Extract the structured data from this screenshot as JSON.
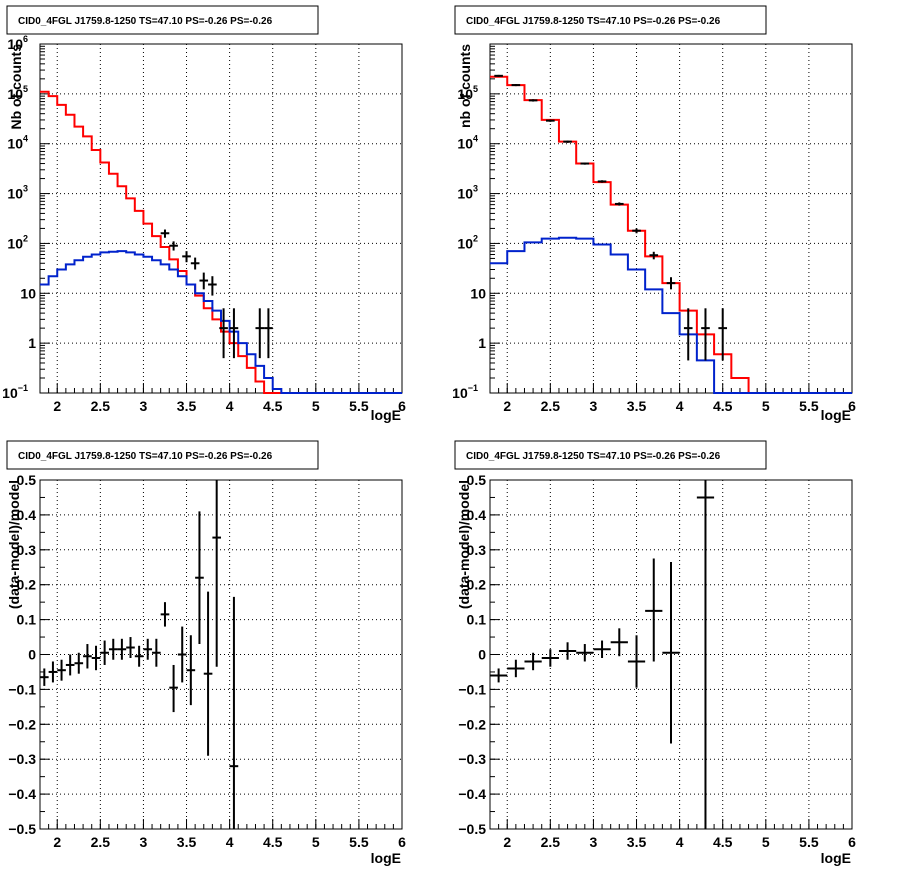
{
  "colors": {
    "data": "#000000",
    "total_model": "#ff0000",
    "source_model": "#0022cc",
    "grid": "#000000"
  },
  "chart_data": [
    {
      "id": "counts-left",
      "type": "line",
      "title": "CID0_4FGL J1759.8-1250 TS=47.10 PS=-0.26 PS=-0.26",
      "xlabel": "logE",
      "ylabel": "Nb of counts",
      "xlim": [
        1.8,
        6.0
      ],
      "ylim": [
        0.1,
        1000000
      ],
      "yscale": "log",
      "grid": true,
      "x_ticks": [
        2,
        2.5,
        3,
        3.5,
        4,
        4.5,
        5,
        5.5,
        6
      ],
      "y_ticks": [
        0.1,
        1,
        10,
        100,
        1000,
        10000,
        100000,
        1000000
      ],
      "y_tick_labels": [
        [
          "10",
          "−1"
        ],
        [
          "1",
          ""
        ],
        [
          "10",
          ""
        ],
        [
          "10",
          "2"
        ],
        [
          "10",
          "3"
        ],
        [
          "10",
          "4"
        ],
        [
          "10",
          "5"
        ],
        [
          "10",
          "6"
        ]
      ],
      "bin_edges": [
        1.8,
        1.9,
        2.0,
        2.1,
        2.2,
        2.3,
        2.4,
        2.5,
        2.6,
        2.7,
        2.8,
        2.9,
        3.0,
        3.1,
        3.2,
        3.3,
        3.4,
        3.5,
        3.6,
        3.7,
        3.8,
        3.9,
        4.0,
        4.1,
        4.2,
        4.3,
        4.4,
        4.5,
        4.6,
        4.7,
        4.8,
        4.9,
        5.0,
        5.1,
        5.2,
        5.3,
        5.4,
        5.5,
        5.6,
        5.7,
        5.8,
        5.9,
        6.0
      ],
      "series": [
        {
          "name": "",
          "role": "total_model",
          "style": "step",
          "values": [
            110000,
            90000,
            60000,
            38000,
            22000,
            14000,
            7500,
            4200,
            2500,
            1400,
            800,
            450,
            250,
            140,
            85,
            48,
            28,
            15,
            9,
            5,
            3,
            1.7,
            1.0,
            0.55,
            0.32,
            0.17,
            0.1,
            0.1,
            0.1,
            0.1,
            0.1,
            0.1,
            0.1,
            0.1,
            0.1,
            0.1,
            0.1,
            0.1,
            0.1,
            0.1,
            0.1,
            0.1
          ]
        },
        {
          "name": "",
          "role": "source_model",
          "style": "step",
          "values": [
            15,
            22,
            30,
            38,
            46,
            54,
            60,
            66,
            68,
            70,
            66,
            60,
            54,
            46,
            38,
            30,
            22,
            15,
            10,
            7,
            4.5,
            2.8,
            1.7,
            1.0,
            0.6,
            0.35,
            0.2,
            0.12,
            0.1,
            0.1,
            0.1,
            0.1,
            0.1,
            0.1,
            0.1,
            0.1,
            0.1,
            0.1,
            0.1,
            0.1,
            0.1,
            0.1
          ]
        },
        {
          "name": "",
          "role": "data",
          "style": "errorbar",
          "points": [
            [
              3.25,
              160,
              130,
              190
            ],
            [
              3.35,
              90,
              72,
              110
            ],
            [
              3.5,
              55,
              42,
              70
            ],
            [
              3.6,
              40,
              30,
              52
            ],
            [
              3.7,
              18,
              12,
              26
            ],
            [
              3.8,
              15,
              9,
              22
            ],
            [
              3.93,
              2,
              0.5,
              5
            ],
            [
              4.05,
              2,
              0.5,
              5
            ],
            [
              4.35,
              2,
              0.5,
              5
            ],
            [
              4.45,
              2,
              0.5,
              5
            ]
          ]
        }
      ]
    },
    {
      "id": "counts-right",
      "type": "line",
      "title": "CID0_4FGL J1759.8-1250 TS=47.10 PS=-0.26 PS=-0.26",
      "xlabel": "logE",
      "ylabel": "nb of counts",
      "xlim": [
        1.8,
        6.0
      ],
      "ylim": [
        0.1,
        1000000
      ],
      "yscale": "log",
      "grid": true,
      "x_ticks": [
        2,
        2.5,
        3,
        3.5,
        4,
        4.5,
        5,
        5.5,
        6
      ],
      "y_ticks": [
        0.1,
        1,
        10,
        100,
        1000,
        10000,
        100000
      ],
      "y_tick_labels": [
        [
          "10",
          "−1"
        ],
        [
          "1",
          ""
        ],
        [
          "10",
          ""
        ],
        [
          "10",
          "2"
        ],
        [
          "10",
          "3"
        ],
        [
          "10",
          "4"
        ],
        [
          "10",
          "5"
        ]
      ],
      "bin_edges": [
        1.8,
        2.0,
        2.2,
        2.4,
        2.6,
        2.8,
        3.0,
        3.2,
        3.4,
        3.6,
        3.8,
        4.0,
        4.2,
        4.4,
        4.6,
        4.8,
        5.0,
        5.2,
        5.4,
        5.6,
        5.8,
        6.0
      ],
      "series": [
        {
          "name": "",
          "role": "total_model",
          "style": "step",
          "values": [
            220000,
            150000,
            75000,
            30000,
            11000,
            4000,
            1700,
            600,
            180,
            55,
            16,
            4.5,
            1.5,
            0.6,
            0.2,
            0.1,
            0.1,
            0.1,
            0.1,
            0.1,
            0.1
          ]
        },
        {
          "name": "",
          "role": "source_model",
          "style": "step",
          "values": [
            40,
            70,
            105,
            125,
            130,
            125,
            95,
            60,
            30,
            12,
            4,
            1.5,
            0.45,
            0.1,
            0.1,
            0.1,
            0.1,
            0.1,
            0.1,
            0.1,
            0.1
          ]
        },
        {
          "name": "",
          "role": "data",
          "style": "errorbar",
          "points": [
            [
              1.9,
              230000,
              220000,
              240000
            ],
            [
              2.1,
              150000,
              143000,
              157000
            ],
            [
              2.3,
              74000,
              70000,
              78000
            ],
            [
              2.5,
              29000,
              27500,
              30500
            ],
            [
              2.7,
              11000,
              10400,
              11600
            ],
            [
              2.9,
              4000,
              3800,
              4200
            ],
            [
              3.1,
              1750,
              1650,
              1850
            ],
            [
              3.3,
              620,
              575,
              665
            ],
            [
              3.5,
              180,
              160,
              200
            ],
            [
              3.7,
              58,
              48,
              68
            ],
            [
              3.9,
              16,
              12,
              21
            ],
            [
              4.1,
              2,
              0.45,
              5
            ],
            [
              4.3,
              2,
              0.45,
              5
            ],
            [
              4.5,
              2,
              0.45,
              5
            ]
          ]
        }
      ]
    },
    {
      "id": "residual-left",
      "type": "scatter",
      "title": "CID0_4FGL J1759.8-1250 TS=47.10 PS=-0.26 PS=-0.26",
      "xlabel": "logE",
      "ylabel": "(data-model)/model",
      "xlim": [
        1.8,
        6.0
      ],
      "ylim": [
        -0.5,
        0.5
      ],
      "yscale": "linear",
      "grid": true,
      "x_ticks": [
        2,
        2.5,
        3,
        3.5,
        4,
        4.5,
        5,
        5.5,
        6
      ],
      "y_ticks": [
        -0.5,
        -0.4,
        -0.3,
        -0.2,
        -0.1,
        0,
        0.1,
        0.2,
        0.3,
        0.4,
        0.5
      ],
      "y_tick_labels": [
        "−0.5",
        "−0.4",
        "−0.3",
        "−0.2",
        "−0.1",
        "0",
        "0.1",
        "0.2",
        "0.3",
        "0.4",
        "0.5"
      ],
      "xerr": 0.05,
      "series": [
        {
          "name": "",
          "role": "data",
          "style": "errorbar",
          "points": [
            [
              1.85,
              -0.065,
              -0.09,
              -0.04
            ],
            [
              1.95,
              -0.05,
              -0.08,
              -0.02
            ],
            [
              2.05,
              -0.045,
              -0.075,
              -0.015
            ],
            [
              2.15,
              -0.03,
              -0.06,
              0.0
            ],
            [
              2.25,
              -0.025,
              -0.055,
              0.005
            ],
            [
              2.35,
              -0.005,
              -0.04,
              0.03
            ],
            [
              2.45,
              -0.01,
              -0.045,
              0.025
            ],
            [
              2.55,
              0.005,
              -0.03,
              0.04
            ],
            [
              2.65,
              0.015,
              -0.015,
              0.045
            ],
            [
              2.75,
              0.015,
              -0.015,
              0.045
            ],
            [
              2.85,
              0.02,
              -0.01,
              0.05
            ],
            [
              2.95,
              -0.005,
              -0.035,
              0.025
            ],
            [
              3.05,
              0.015,
              -0.015,
              0.045
            ],
            [
              3.15,
              0.005,
              -0.035,
              0.045
            ],
            [
              3.25,
              0.115,
              0.08,
              0.15
            ],
            [
              3.35,
              -0.095,
              -0.165,
              -0.03
            ],
            [
              3.45,
              0.0,
              -0.08,
              0.08
            ],
            [
              3.55,
              -0.045,
              -0.145,
              0.055
            ],
            [
              3.65,
              0.22,
              0.03,
              0.41
            ],
            [
              3.75,
              -0.055,
              -0.29,
              0.18
            ],
            [
              3.85,
              0.335,
              -0.035,
              0.5
            ],
            [
              4.05,
              -0.32,
              -0.5,
              0.165
            ]
          ]
        }
      ]
    },
    {
      "id": "residual-right",
      "type": "scatter",
      "title": "CID0_4FGL J1759.8-1250 TS=47.10 PS=-0.26 PS=-0.26",
      "xlabel": "logE",
      "ylabel": "(data-model)/model",
      "xlim": [
        1.8,
        6.0
      ],
      "ylim": [
        -0.5,
        0.5
      ],
      "yscale": "linear",
      "grid": true,
      "x_ticks": [
        2,
        2.5,
        3,
        3.5,
        4,
        4.5,
        5,
        5.5,
        6
      ],
      "y_ticks": [
        -0.5,
        -0.4,
        -0.3,
        -0.2,
        -0.1,
        0,
        0.1,
        0.2,
        0.3,
        0.4,
        0.5
      ],
      "y_tick_labels": [
        "−0.5",
        "−0.4",
        "−0.3",
        "−0.2",
        "−0.1",
        "0",
        "0.1",
        "0.2",
        "0.3",
        "0.4",
        "0.5"
      ],
      "xerr": 0.1,
      "series": [
        {
          "name": "",
          "role": "data",
          "style": "errorbar",
          "points": [
            [
              1.9,
              -0.06,
              -0.08,
              -0.04
            ],
            [
              2.1,
              -0.04,
              -0.065,
              -0.015
            ],
            [
              2.3,
              -0.02,
              -0.045,
              0.005
            ],
            [
              2.5,
              -0.01,
              -0.035,
              0.015
            ],
            [
              2.7,
              0.01,
              -0.015,
              0.035
            ],
            [
              2.9,
              0.005,
              -0.02,
              0.03
            ],
            [
              3.1,
              0.015,
              -0.01,
              0.04
            ],
            [
              3.3,
              0.035,
              -0.005,
              0.075
            ],
            [
              3.5,
              -0.02,
              -0.095,
              0.055
            ],
            [
              3.7,
              0.125,
              -0.02,
              0.275
            ],
            [
              3.9,
              0.005,
              -0.255,
              0.265
            ],
            [
              4.3,
              0.45,
              -0.5,
              0.5
            ]
          ]
        }
      ]
    }
  ]
}
